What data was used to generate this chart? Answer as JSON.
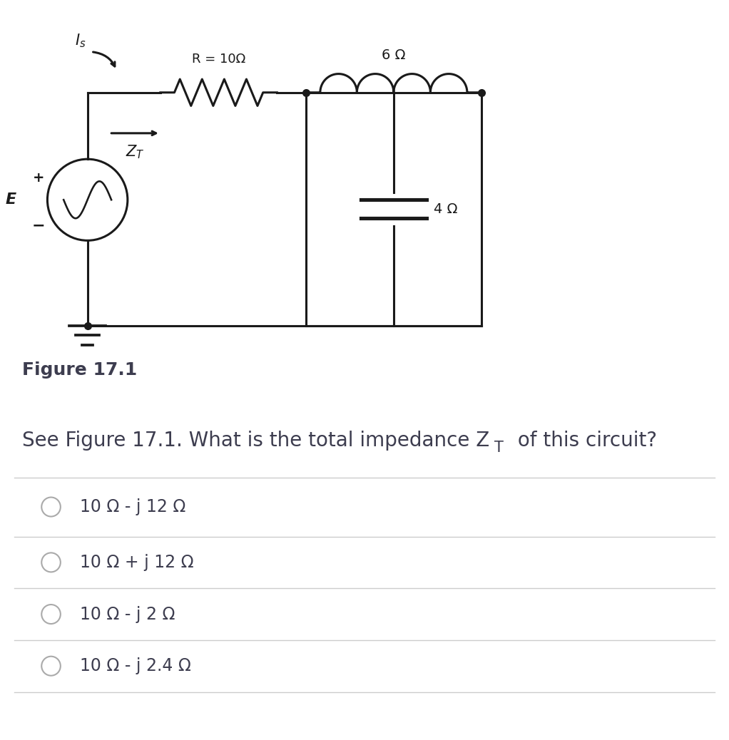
{
  "background_color": "#ffffff",
  "figure_label": "Figure 17.1",
  "question_text": "See Figure 17.1. What is the total impedance Z",
  "question_subscript": "T",
  "question_suffix": " of this circuit?",
  "choices": [
    "10 Ω - j 12 Ω",
    "10 Ω + j 12 Ω",
    "10 Ω - j 2 Ω",
    "10 Ω - j 2.4 Ω"
  ],
  "text_color": "#3d3d4f",
  "circuit_color": "#1a1a1a",
  "divider_color": "#cccccc",
  "choice_fontsize": 17,
  "question_fontsize": 20,
  "figure_label_fontsize": 18
}
